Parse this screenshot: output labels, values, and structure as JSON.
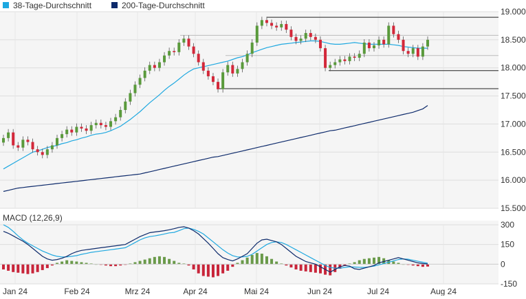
{
  "chart_data": [
    {
      "type": "candlestick",
      "legend_placement": "top-left",
      "legend": [
        {
          "name": "38-Tage-Durchschnitt",
          "color": "#1ea8e0"
        },
        {
          "name": "200-Tage-Durchschnitt",
          "color": "#0d2a6b"
        }
      ],
      "ylim": [
        15.5,
        19.0
      ],
      "yticks": [
        {
          "value": 19.0,
          "label": "19.000"
        },
        {
          "value": 18.5,
          "label": "18.500"
        },
        {
          "value": 18.0,
          "label": "18.000"
        },
        {
          "value": 17.5,
          "label": "17.500"
        },
        {
          "value": 17.0,
          "label": "17.000"
        },
        {
          "value": 16.5,
          "label": "16.500"
        },
        {
          "value": 16.0,
          "label": "16.000"
        },
        {
          "value": 15.5,
          "label": "15.500"
        }
      ],
      "xticks": [
        "Jan 24",
        "Feb 24",
        "Mrz 24",
        "Apr 24",
        "Mai 24",
        "Jun 24",
        "Jul 24",
        "Aug 24"
      ],
      "up_color": "#5a9a3c",
      "down_color": "#d3283a",
      "close": [
        16.75,
        16.85,
        16.62,
        16.58,
        16.72,
        16.68,
        16.55,
        16.5,
        16.45,
        16.55,
        16.62,
        16.75,
        16.82,
        16.9,
        16.85,
        16.95,
        16.92,
        16.88,
        16.98,
        17.02,
        16.98,
        16.95,
        17.05,
        17.12,
        17.25,
        17.4,
        17.55,
        17.7,
        17.82,
        17.95,
        18.05,
        18.0,
        18.1,
        18.22,
        18.3,
        18.28,
        18.45,
        18.52,
        18.38,
        18.25,
        18.1,
        17.95,
        17.85,
        17.75,
        17.62,
        17.92,
        18.05,
        17.9,
        17.98,
        18.1,
        18.25,
        18.45,
        18.75,
        18.85,
        18.8,
        18.75,
        18.72,
        18.78,
        18.68,
        18.55,
        18.48,
        18.52,
        18.62,
        18.55,
        18.5,
        18.35,
        18.0,
        18.05,
        18.1,
        18.15,
        18.12,
        18.2,
        18.18,
        18.25,
        18.45,
        18.35,
        18.4,
        18.5,
        18.42,
        18.75,
        18.6,
        18.5,
        18.3,
        18.25,
        18.35,
        18.2,
        18.38,
        18.5
      ],
      "ma38": [
        16.2,
        16.25,
        16.3,
        16.35,
        16.4,
        16.45,
        16.5,
        16.52,
        16.55,
        16.58,
        16.6,
        16.62,
        16.65,
        16.67,
        16.7,
        16.72,
        16.75,
        16.77,
        16.8,
        16.82,
        16.83,
        16.85,
        16.88,
        16.92,
        16.96,
        17.02,
        17.08,
        17.15,
        17.22,
        17.3,
        17.38,
        17.45,
        17.52,
        17.6,
        17.67,
        17.73,
        17.8,
        17.87,
        17.93,
        17.98,
        18.0,
        18.02,
        18.04,
        18.06,
        18.08,
        18.1,
        18.12,
        18.15,
        18.18,
        18.2,
        18.23,
        18.27,
        18.3,
        18.33,
        18.36,
        18.38,
        18.4,
        18.42,
        18.43,
        18.44,
        18.45,
        18.46,
        18.47,
        18.48,
        18.48,
        18.47,
        18.45,
        18.43,
        18.42,
        18.42,
        18.43,
        18.44,
        18.45,
        18.44,
        18.43,
        18.42,
        18.42,
        18.42,
        18.42,
        18.42,
        18.41,
        18.4,
        18.38,
        18.37,
        18.36,
        18.35,
        18.35,
        18.35
      ],
      "ma200": [
        15.8,
        15.82,
        15.84,
        15.86,
        15.87,
        15.88,
        15.89,
        15.9,
        15.91,
        15.92,
        15.93,
        15.94,
        15.95,
        15.96,
        15.97,
        15.98,
        15.99,
        16.0,
        16.01,
        16.02,
        16.03,
        16.04,
        16.05,
        16.06,
        16.07,
        16.08,
        16.09,
        16.1,
        16.11,
        16.13,
        16.15,
        16.17,
        16.19,
        16.21,
        16.23,
        16.25,
        16.27,
        16.29,
        16.31,
        16.33,
        16.35,
        16.37,
        16.39,
        16.41,
        16.42,
        16.44,
        16.46,
        16.48,
        16.5,
        16.52,
        16.54,
        16.56,
        16.58,
        16.6,
        16.62,
        16.64,
        16.66,
        16.68,
        16.7,
        16.72,
        16.74,
        16.76,
        16.78,
        16.8,
        16.82,
        16.84,
        16.86,
        16.88,
        16.89,
        16.91,
        16.93,
        16.95,
        16.97,
        16.99,
        17.01,
        17.03,
        17.05,
        17.07,
        17.09,
        17.11,
        17.13,
        17.15,
        17.17,
        17.19,
        17.21,
        17.24,
        17.27,
        17.33
      ],
      "hlines": [
        18.9,
        18.58,
        18.22,
        17.95,
        17.63
      ]
    },
    {
      "type": "bar",
      "title": "MACD (12,26,9)",
      "ylim": [
        -150,
        300
      ],
      "yticks": [
        {
          "value": 300,
          "label": "300"
        },
        {
          "value": 150,
          "label": "150"
        },
        {
          "value": 0,
          "label": "0"
        },
        {
          "value": -150,
          "label": "-150"
        }
      ],
      "up_color": "#6a9a4a",
      "down_color": "#c8253a",
      "macd": [
        250,
        235,
        215,
        195,
        175,
        150,
        120,
        90,
        60,
        40,
        30,
        35,
        45,
        60,
        80,
        95,
        105,
        110,
        115,
        120,
        125,
        130,
        135,
        140,
        145,
        150,
        170,
        190,
        210,
        225,
        240,
        245,
        250,
        255,
        262,
        270,
        280,
        285,
        275,
        255,
        230,
        195,
        160,
        120,
        80,
        50,
        35,
        25,
        40,
        60,
        80,
        120,
        160,
        185,
        190,
        180,
        170,
        150,
        120,
        90,
        60,
        40,
        20,
        10,
        0,
        -20,
        -40,
        -60,
        -40,
        -20,
        -10,
        -15,
        -35,
        -40,
        -30,
        -20,
        -10,
        10,
        20,
        30,
        40,
        50,
        40,
        30,
        20,
        10,
        5,
        2
      ],
      "signal": [
        300,
        280,
        250,
        215,
        185,
        160,
        140,
        120,
        100,
        85,
        70,
        60,
        55,
        55,
        60,
        65,
        75,
        82,
        90,
        95,
        100,
        105,
        110,
        115,
        120,
        125,
        145,
        165,
        185,
        200,
        210,
        215,
        222,
        230,
        238,
        242,
        255,
        270,
        275,
        265,
        250,
        230,
        200,
        170,
        140,
        110,
        85,
        65,
        55,
        55,
        60,
        75,
        100,
        125,
        150,
        165,
        170,
        165,
        150,
        130,
        110,
        90,
        70,
        50,
        30,
        10,
        -10,
        -25,
        -30,
        -30,
        -25,
        -20,
        -22,
        -24,
        -25,
        -20,
        -15,
        -5,
        5,
        15,
        25,
        35,
        40,
        38,
        30,
        22,
        15,
        8
      ],
      "hist": [
        -40,
        -50,
        -60,
        -65,
        -70,
        -75,
        -70,
        -60,
        -45,
        -30,
        -10,
        10,
        20,
        30,
        25,
        20,
        15,
        10,
        5,
        0,
        -5,
        -10,
        -15,
        -15,
        -10,
        -5,
        5,
        15,
        25,
        35,
        45,
        55,
        60,
        55,
        40,
        25,
        10,
        5,
        -10,
        -40,
        -70,
        -90,
        -95,
        -100,
        -90,
        -70,
        -50,
        -20,
        10,
        30,
        50,
        70,
        85,
        80,
        60,
        40,
        20,
        5,
        -10,
        -25,
        -40,
        -50,
        -55,
        -60,
        -65,
        -70,
        -80,
        -85,
        -60,
        -35,
        -10,
        5,
        15,
        30,
        40,
        45,
        50,
        55,
        45,
        30,
        20,
        10,
        0,
        -5,
        -10,
        -15,
        -20,
        -18
      ]
    }
  ]
}
